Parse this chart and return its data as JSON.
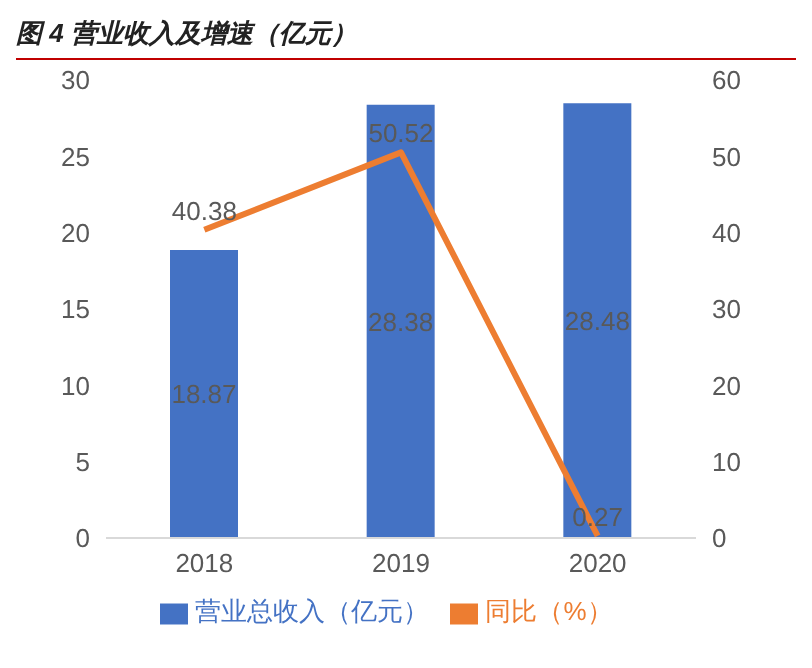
{
  "chart_data": {
    "type": "bar",
    "title": "图 4  营业收入及增速（亿元）",
    "categories": [
      "2018",
      "2019",
      "2020"
    ],
    "series": [
      {
        "name": "营业总收入（亿元）",
        "color": "#4472c4",
        "values": [
          18.87,
          28.38,
          28.48
        ]
      },
      {
        "name": "同比（%）",
        "type": "line",
        "axis": "y2",
        "color": "#ed7d31",
        "values": [
          40.38,
          50.52,
          0.27
        ]
      }
    ],
    "ylim": [
      0,
      30
    ],
    "yticks": [
      0,
      5,
      10,
      15,
      20,
      25,
      30
    ],
    "y2lim": [
      0,
      60
    ],
    "y2ticks": [
      0,
      10,
      20,
      30,
      40,
      50,
      60
    ],
    "data_labels": true,
    "legend": "bottom",
    "marker": "none",
    "line_style": "solid"
  }
}
